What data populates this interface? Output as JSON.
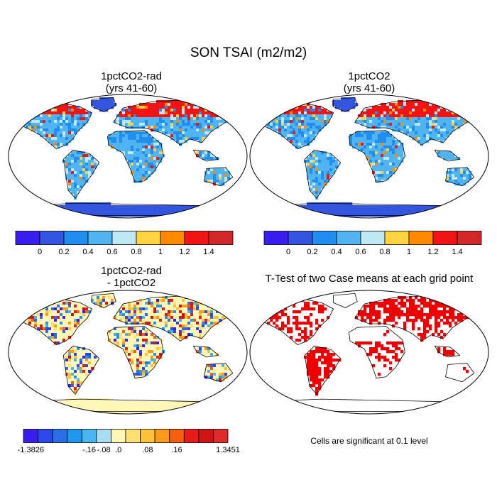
{
  "figure": {
    "title": "SON TSAI (m2/m2)"
  },
  "panels": [
    {
      "id": "p1",
      "title_line1": "1pctCO2-rad",
      "title_line2": "(yrs 41-60)"
    },
    {
      "id": "p2",
      "title_line1": "1pctCO2",
      "title_line2": "(yrs 41-60)"
    },
    {
      "id": "p3",
      "title_line1": "1pctCO2-rad",
      "title_line2": "- 1pctCO2"
    },
    {
      "id": "p4",
      "title_line1": "T-Test of two Case means at each grid point",
      "title_line2": ""
    }
  ],
  "colorbars": {
    "abs": {
      "colors": [
        "#3a1ef0",
        "#3355e0",
        "#1f8ef0",
        "#4fb4f0",
        "#bfe6f5",
        "#ffd23f",
        "#ff8a00",
        "#f01414",
        "#d02828"
      ],
      "tick_labels": [
        "0",
        "0.2",
        "0.4",
        "0.6",
        "0.8",
        "1",
        "1.2",
        "1.4"
      ]
    },
    "diff": {
      "colors": [
        "#3a1ef0",
        "#2a48ec",
        "#2b6fe8",
        "#1c96ee",
        "#48b4f0",
        "#a8dcf2",
        "#fff7b5",
        "#ffe070",
        "#ffc23a",
        "#ff9a1a",
        "#f86010",
        "#e81a1a",
        "#d01414",
        "#e02a2a"
      ],
      "tick_labels": [
        "-1.3826",
        "-.16",
        "-.08",
        ".0",
        ".08",
        ".16",
        "1.3451"
      ]
    }
  },
  "ttest_note": "Cells are significant at 0.1 level",
  "colors": {
    "antarctica_abs": "#3355e0",
    "land_abs": "#4fb4f0",
    "land_diff": "#fff7b5",
    "significant": "#ee0000"
  }
}
